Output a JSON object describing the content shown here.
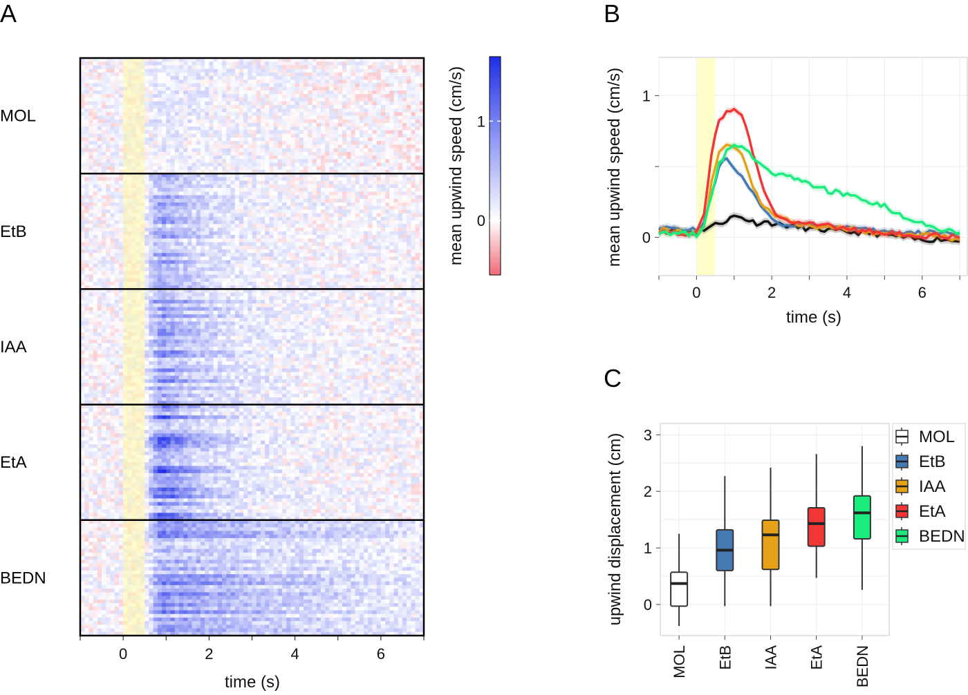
{
  "figure": {
    "panel_a": "A",
    "panel_b": "B",
    "panel_c": "C"
  },
  "chart_data": [
    {
      "panel": "A",
      "type": "heatmap",
      "rows": [
        "MOL",
        "EtB",
        "IAA",
        "EtA",
        "BEDN"
      ],
      "xlabel": "time (s)",
      "xticks": [
        0,
        2,
        4,
        6
      ],
      "xlim": [
        -1,
        7
      ],
      "stimulus_window": [
        0,
        0.5
      ],
      "rows_per_group": 32,
      "timebins": 80,
      "colorbar": {
        "label": "mean upwind speed (cm/s)",
        "ticks": [
          0,
          1
        ],
        "range": [
          -0.55,
          1.65
        ],
        "colors": {
          "low": "#f06b78",
          "zero": "#ffffff",
          "high": "#1e2ee8"
        }
      },
      "group_profile": [
        {
          "name": "MOL",
          "peak": 0.1,
          "decay": 2.0,
          "baseline": 0.05
        },
        {
          "name": "EtB",
          "peak": 0.55,
          "decay": 1.1,
          "baseline": 0.05
        },
        {
          "name": "IAA",
          "peak": 0.65,
          "decay": 1.3,
          "baseline": 0.05
        },
        {
          "name": "EtA",
          "peak": 0.9,
          "decay": 1.1,
          "baseline": 0.05
        },
        {
          "name": "BEDN",
          "peak": 0.65,
          "decay": 3.6,
          "baseline": 0.05
        }
      ]
    },
    {
      "panel": "B",
      "type": "line",
      "xlabel": "time (s)",
      "ylabel": "mean upwind speed (cm/s)",
      "xlim": [
        -1.0,
        7.2
      ],
      "ylim": [
        -0.27,
        1.27
      ],
      "xticks": [
        0,
        2,
        4,
        6
      ],
      "yticks": [
        0,
        1
      ],
      "stimulus_window": [
        0,
        0.5
      ],
      "grid": true,
      "x": [
        -1.0,
        -0.5,
        0.0,
        0.2,
        0.4,
        0.6,
        0.8,
        1.0,
        1.2,
        1.4,
        1.6,
        1.8,
        2.0,
        2.2,
        2.5,
        3.0,
        3.5,
        4.0,
        4.5,
        5.0,
        5.5,
        6.0,
        6.5,
        7.0
      ],
      "series": [
        {
          "color": "#111111",
          "values": [
            0.07,
            0.05,
            0.04,
            0.06,
            0.08,
            0.1,
            0.12,
            0.15,
            0.14,
            0.12,
            0.1,
            0.11,
            0.1,
            0.09,
            0.08,
            0.06,
            0.05,
            0.04,
            0.03,
            0.02,
            0.0,
            -0.02,
            -0.01,
            -0.03
          ]
        },
        {
          "color": "#4479b4",
          "values": [
            0.08,
            0.06,
            0.05,
            0.1,
            0.3,
            0.5,
            0.56,
            0.5,
            0.43,
            0.35,
            0.26,
            0.18,
            0.14,
            0.1,
            0.08,
            0.1,
            0.08,
            0.07,
            0.05,
            0.04,
            0.03,
            0.03,
            0.04,
            0.03
          ]
        },
        {
          "color": "#e5a118",
          "values": [
            0.05,
            0.04,
            0.03,
            0.08,
            0.38,
            0.6,
            0.65,
            0.63,
            0.58,
            0.44,
            0.3,
            0.22,
            0.17,
            0.14,
            0.11,
            0.08,
            0.07,
            0.06,
            0.04,
            0.03,
            0.02,
            0.02,
            0.01,
            -0.02
          ]
        },
        {
          "color": "#f23535",
          "values": [
            0.04,
            0.03,
            0.03,
            0.15,
            0.6,
            0.82,
            0.88,
            0.92,
            0.85,
            0.7,
            0.5,
            0.32,
            0.2,
            0.15,
            0.12,
            0.1,
            0.08,
            0.06,
            0.05,
            0.03,
            0.02,
            0.01,
            0.01,
            0.0
          ]
        },
        {
          "color": "#1aec7e",
          "values": [
            0.04,
            0.03,
            0.02,
            0.08,
            0.3,
            0.52,
            0.6,
            0.65,
            0.66,
            0.6,
            0.53,
            0.48,
            0.46,
            0.44,
            0.42,
            0.38,
            0.33,
            0.3,
            0.26,
            0.22,
            0.15,
            0.1,
            0.05,
            0.03
          ]
        }
      ]
    },
    {
      "panel": "C",
      "type": "box",
      "ylabel": "upwind displacement (cm)",
      "ylim": [
        -0.55,
        3.2
      ],
      "yticks": [
        0,
        1,
        2,
        3
      ],
      "grid": true,
      "categories": [
        "MOL",
        "EtB",
        "IAA",
        "EtA",
        "BEDN"
      ],
      "boxes": [
        {
          "name": "MOL",
          "color": "#ffffff",
          "min": -0.38,
          "q1": -0.03,
          "median": 0.37,
          "q3": 0.57,
          "max": 1.25
        },
        {
          "name": "EtB",
          "color": "#4479b4",
          "min": -0.03,
          "q1": 0.6,
          "median": 0.96,
          "q3": 1.32,
          "max": 2.27
        },
        {
          "name": "IAA",
          "color": "#e5a118",
          "min": -0.03,
          "q1": 0.62,
          "median": 1.23,
          "q3": 1.49,
          "max": 2.42
        },
        {
          "name": "EtA",
          "color": "#f23535",
          "min": 0.47,
          "q1": 1.03,
          "median": 1.43,
          "q3": 1.71,
          "max": 2.66
        },
        {
          "name": "BEDN",
          "color": "#1aec7e",
          "min": 0.26,
          "q1": 1.16,
          "median": 1.62,
          "q3": 1.92,
          "max": 2.8
        }
      ],
      "legend": {
        "placement": "right",
        "entries": [
          {
            "label": "MOL",
            "color": "#ffffff"
          },
          {
            "label": "EtB",
            "color": "#4479b4"
          },
          {
            "label": "IAA",
            "color": "#e5a118"
          },
          {
            "label": "EtA",
            "color": "#f23535"
          },
          {
            "label": "BEDN",
            "color": "#1aec7e"
          }
        ]
      }
    }
  ]
}
